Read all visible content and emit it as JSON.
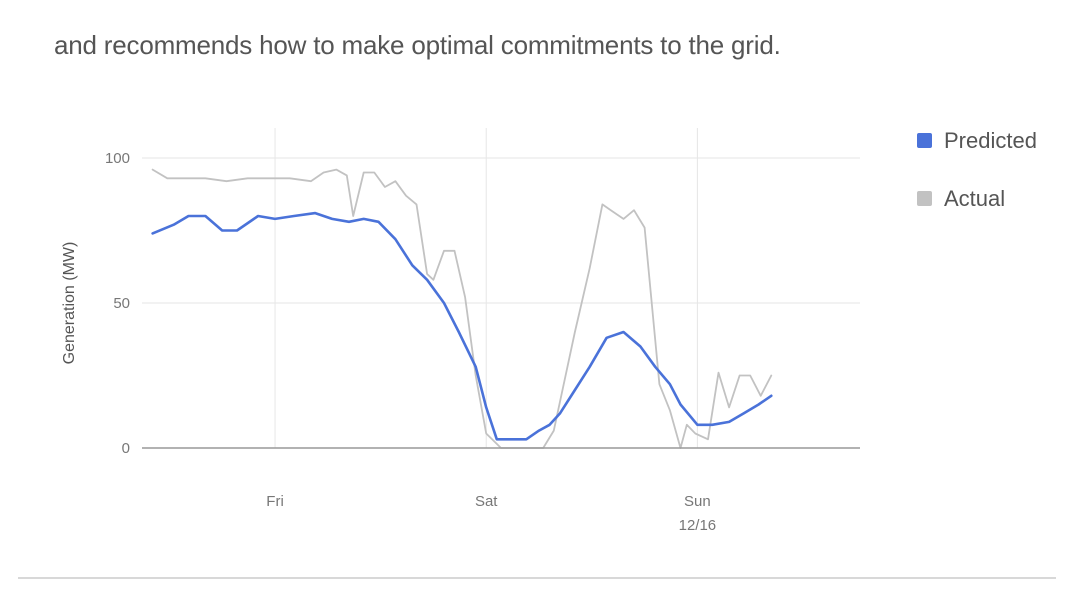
{
  "intro_text": "and recommends how to make optimal commitments to the grid.",
  "chart_data": {
    "type": "line",
    "title": "",
    "ylabel": "Generation (MW)",
    "xlabel": "",
    "ylim": [
      0,
      100
    ],
    "yticks": [
      "0",
      "50",
      "100"
    ],
    "xlim": [
      0,
      3.4
    ],
    "xticks": [
      {
        "at": 0.63,
        "label": "Fri",
        "sublabel": ""
      },
      {
        "at": 1.63,
        "label": "Sat",
        "sublabel": ""
      },
      {
        "at": 2.63,
        "label": "Sun",
        "sublabel": "12/16"
      }
    ],
    "grid": true,
    "legend_position": "top-right",
    "series": [
      {
        "name": "Predicted",
        "color": "#4a72d9",
        "x": [
          0.05,
          0.15,
          0.22,
          0.3,
          0.38,
          0.45,
          0.55,
          0.63,
          0.72,
          0.82,
          0.9,
          0.98,
          1.05,
          1.12,
          1.2,
          1.28,
          1.35,
          1.43,
          1.5,
          1.58,
          1.63,
          1.68,
          1.73,
          1.82,
          1.88,
          1.93,
          1.98,
          2.05,
          2.12,
          2.2,
          2.28,
          2.36,
          2.43,
          2.5,
          2.55,
          2.63,
          2.7,
          2.78,
          2.85,
          2.92,
          2.98
        ],
        "values": [
          74,
          77,
          80,
          80,
          75,
          75,
          80,
          79,
          80,
          81,
          79,
          78,
          79,
          78,
          72,
          63,
          58,
          50,
          40,
          28,
          14,
          3,
          3,
          3,
          6,
          8,
          12,
          20,
          28,
          38,
          40,
          35,
          28,
          22,
          15,
          8,
          8,
          9,
          12,
          15,
          18
        ]
      },
      {
        "name": "Actual",
        "color": "#c2c2c2",
        "x": [
          0.05,
          0.12,
          0.2,
          0.3,
          0.4,
          0.5,
          0.6,
          0.7,
          0.8,
          0.86,
          0.92,
          0.97,
          1.0,
          1.05,
          1.1,
          1.15,
          1.2,
          1.25,
          1.3,
          1.35,
          1.38,
          1.43,
          1.48,
          1.53,
          1.58,
          1.63,
          1.7,
          1.78,
          1.85,
          1.9,
          1.95,
          2.05,
          2.12,
          2.18,
          2.22,
          2.28,
          2.33,
          2.38,
          2.45,
          2.5,
          2.55,
          2.58,
          2.62,
          2.68,
          2.73,
          2.78,
          2.83,
          2.88,
          2.93,
          2.98
        ],
        "values": [
          96,
          93,
          93,
          93,
          92,
          93,
          93,
          93,
          92,
          95,
          96,
          94,
          80,
          95,
          95,
          90,
          92,
          87,
          84,
          60,
          58,
          68,
          68,
          52,
          25,
          5,
          0,
          0,
          0,
          0,
          6,
          40,
          62,
          84,
          82,
          79,
          82,
          76,
          22,
          13,
          0,
          8,
          5,
          3,
          26,
          14,
          25,
          25,
          18,
          25
        ]
      }
    ]
  }
}
